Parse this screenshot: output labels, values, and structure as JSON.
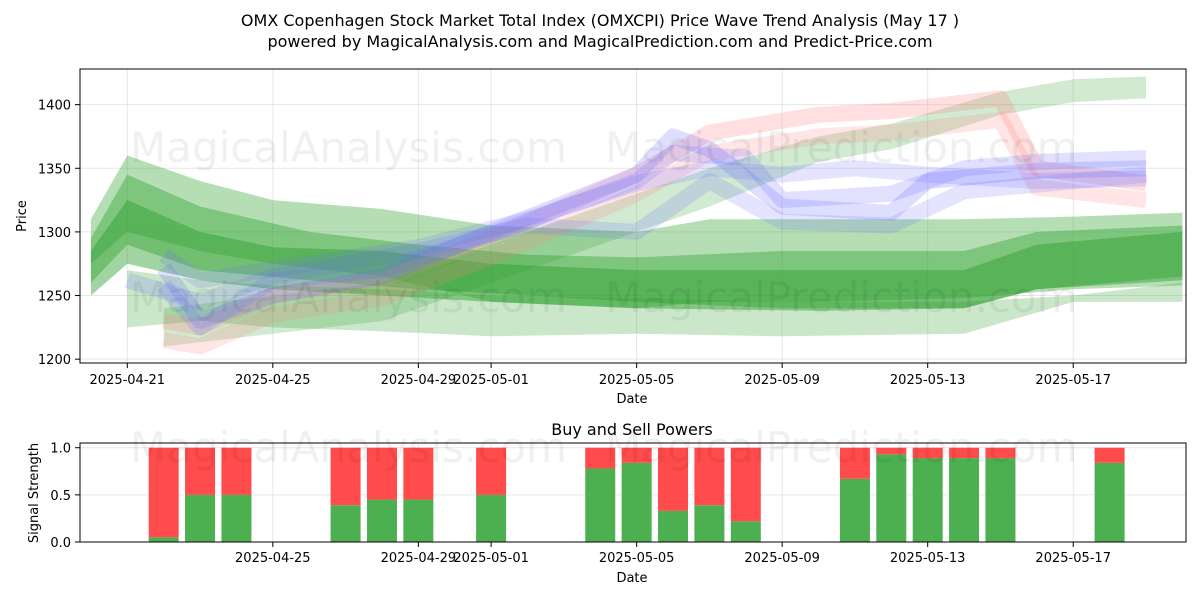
{
  "title": {
    "line1": "OMX Copenhagen Stock Market Total Index (OMXCPI) Price Wave Trend Analysis (May 17 )",
    "line2": "powered by MagicalAnalysis.com and MagicalPrediction.com and Predict-Price.com"
  },
  "watermark": {
    "left": "MagicalAnalysis.com",
    "right": "MagicalPrediction.com"
  },
  "colors": {
    "green": "#2ca02c",
    "red": "#ff7f7f",
    "blue": "#6a6aff",
    "buy": "#4caf50",
    "sell": "#ff4b4b"
  },
  "chart_data": [
    {
      "type": "area",
      "title": "",
      "xlabel": "Date",
      "ylabel": "Price",
      "x_range": [
        "2025-04-20",
        "2025-05-20"
      ],
      "ylim": [
        1197,
        1428
      ],
      "x_ticks": [
        "2025-04-21",
        "2025-04-25",
        "2025-04-29",
        "2025-05-01",
        "2025-05-05",
        "2025-05-09",
        "2025-05-13",
        "2025-05-17"
      ],
      "y_ticks": [
        1200,
        1250,
        1300,
        1350,
        1400
      ],
      "grid": true,
      "bands": [
        {
          "color": "green",
          "opacity": 0.35,
          "x": [
            "2025-04-20",
            "2025-04-21",
            "2025-04-23",
            "2025-04-25",
            "2025-04-28",
            "2025-05-01",
            "2025-05-05",
            "2025-05-07",
            "2025-05-10",
            "2025-05-14",
            "2025-05-17",
            "2025-05-20"
          ],
          "upper": [
            1310,
            1360,
            1340,
            1325,
            1318,
            1305,
            1300,
            1310,
            1310,
            1310,
            1312,
            1315
          ],
          "lower": [
            1275,
            1300,
            1285,
            1275,
            1265,
            1245,
            1240,
            1245,
            1245,
            1248,
            1255,
            1258
          ]
        },
        {
          "color": "green",
          "opacity": 0.4,
          "x": [
            "2025-04-20",
            "2025-04-21",
            "2025-04-23",
            "2025-04-26",
            "2025-04-29",
            "2025-05-02",
            "2025-05-05",
            "2025-05-09",
            "2025-05-14",
            "2025-05-16",
            "2025-05-20"
          ],
          "upper": [
            1295,
            1345,
            1320,
            1300,
            1290,
            1282,
            1280,
            1285,
            1285,
            1300,
            1305
          ],
          "lower": [
            1260,
            1290,
            1270,
            1262,
            1255,
            1250,
            1245,
            1240,
            1240,
            1255,
            1265
          ]
        },
        {
          "color": "green",
          "opacity": 0.45,
          "x": [
            "2025-04-20",
            "2025-04-21",
            "2025-04-23",
            "2025-04-25",
            "2025-04-28",
            "2025-05-01",
            "2025-05-05",
            "2025-05-10",
            "2025-05-14",
            "2025-05-16",
            "2025-05-20"
          ],
          "upper": [
            1285,
            1325,
            1300,
            1288,
            1285,
            1275,
            1270,
            1270,
            1270,
            1290,
            1300
          ],
          "lower": [
            1250,
            1275,
            1262,
            1255,
            1250,
            1245,
            1240,
            1238,
            1240,
            1255,
            1262
          ]
        },
        {
          "color": "green",
          "opacity": 0.25,
          "x": [
            "2025-04-21",
            "2025-04-23",
            "2025-04-25",
            "2025-04-28",
            "2025-05-01",
            "2025-05-05",
            "2025-05-09",
            "2025-05-14",
            "2025-05-17",
            "2025-05-20"
          ],
          "upper": [
            1270,
            1262,
            1258,
            1255,
            1250,
            1248,
            1245,
            1245,
            1250,
            1260
          ],
          "lower": [
            1225,
            1230,
            1225,
            1222,
            1218,
            1220,
            1218,
            1220,
            1245,
            1245
          ]
        },
        {
          "color": "green",
          "opacity": 0.22,
          "x": [
            "2025-04-22",
            "2025-04-25",
            "2025-04-28",
            "2025-05-01",
            "2025-05-03",
            "2025-05-05",
            "2025-05-07",
            "2025-05-10",
            "2025-05-12",
            "2025-05-15",
            "2025-05-17",
            "2025-05-19"
          ],
          "upper": [
            1240,
            1250,
            1260,
            1290,
            1310,
            1330,
            1350,
            1375,
            1385,
            1410,
            1420,
            1422
          ],
          "lower": [
            1210,
            1220,
            1230,
            1260,
            1280,
            1300,
            1320,
            1355,
            1365,
            1392,
            1402,
            1405
          ]
        },
        {
          "color": "red",
          "opacity": 0.25,
          "x": [
            "2025-04-22",
            "2025-04-23",
            "2025-04-25",
            "2025-04-28",
            "2025-05-01",
            "2025-05-05",
            "2025-05-07",
            "2025-05-10",
            "2025-05-12",
            "2025-05-15",
            "2025-05-16",
            "2025-05-19"
          ],
          "upper": [
            1230,
            1225,
            1250,
            1262,
            1295,
            1345,
            1378,
            1392,
            1395,
            1405,
            1350,
            1338
          ]
        },
        {
          "color": "red",
          "opacity": 0.2,
          "x": [
            "2025-04-22",
            "2025-04-23",
            "2025-04-25",
            "2025-04-28",
            "2025-05-01",
            "2025-05-05",
            "2025-05-07",
            "2025-05-10",
            "2025-05-12",
            "2025-05-15",
            "2025-05-16",
            "2025-05-19"
          ],
          "upper": [
            1215,
            1210,
            1235,
            1248,
            1280,
            1330,
            1362,
            1375,
            1378,
            1388,
            1335,
            1325
          ]
        },
        {
          "color": "blue",
          "opacity": 0.22,
          "x": [
            "2025-04-22",
            "2025-04-23",
            "2025-04-25",
            "2025-04-28",
            "2025-05-01",
            "2025-05-05",
            "2025-05-06",
            "2025-05-07",
            "2025-05-09",
            "2025-05-12",
            "2025-05-13",
            "2025-05-16",
            "2025-05-19"
          ],
          "upper": [
            1272,
            1230,
            1250,
            1265,
            1300,
            1345,
            1375,
            1365,
            1320,
            1315,
            1340,
            1348,
            1350
          ]
        },
        {
          "color": "blue",
          "opacity": 0.2,
          "x": [
            "2025-04-22",
            "2025-04-23",
            "2025-04-25",
            "2025-04-28",
            "2025-05-01",
            "2025-05-05",
            "2025-05-06",
            "2025-05-08",
            "2025-05-09",
            "2025-05-12",
            "2025-05-14",
            "2025-05-16",
            "2025-05-19"
          ],
          "upper": [
            1258,
            1225,
            1262,
            1270,
            1298,
            1340,
            1362,
            1358,
            1325,
            1330,
            1350,
            1355,
            1358
          ]
        },
        {
          "color": "blue",
          "opacity": 0.18,
          "x": [
            "2025-04-22",
            "2025-04-23",
            "2025-04-26",
            "2025-04-29",
            "2025-05-02",
            "2025-05-05",
            "2025-05-07",
            "2025-05-09",
            "2025-05-11",
            "2025-05-13",
            "2025-05-16",
            "2025-05-19"
          ],
          "upper": [
            1282,
            1262,
            1275,
            1288,
            1310,
            1338,
            1350,
            1345,
            1350,
            1345,
            1340,
            1342
          ]
        },
        {
          "color": "blue",
          "opacity": 0.18,
          "x": [
            "2025-04-21",
            "2025-04-23",
            "2025-04-25",
            "2025-04-29",
            "2025-05-02",
            "2025-05-05",
            "2025-05-07",
            "2025-05-09",
            "2025-05-12",
            "2025-05-14",
            "2025-05-19"
          ],
          "upper": [
            1262,
            1245,
            1265,
            1285,
            1305,
            1300,
            1340,
            1308,
            1305,
            1332,
            1345
          ]
        }
      ]
    },
    {
      "type": "bar",
      "title": "Buy and Sell Powers",
      "xlabel": "Date",
      "ylabel": "Signal Strength",
      "ylim": [
        0,
        1.05
      ],
      "y_ticks": [
        0.0,
        0.5,
        1.0
      ],
      "x_ticks": [
        "2025-04-25",
        "2025-04-29",
        "2025-05-01",
        "2025-05-05",
        "2025-05-09",
        "2025-05-13",
        "2025-05-17"
      ],
      "grid": true,
      "series": [
        {
          "name": "Buy",
          "color": "buy"
        },
        {
          "name": "Sell",
          "color": "sell"
        }
      ],
      "categories": [
        "2025-04-22",
        "2025-04-23",
        "2025-04-24",
        "2025-04-27",
        "2025-04-28",
        "2025-04-29",
        "2025-05-01",
        "2025-05-04",
        "2025-05-05",
        "2025-05-06",
        "2025-05-07",
        "2025-05-08",
        "2025-05-11",
        "2025-05-12",
        "2025-05-13",
        "2025-05-14",
        "2025-05-15",
        "2025-05-18"
      ],
      "buy": [
        0.05,
        0.5,
        0.5,
        0.39,
        0.45,
        0.45,
        0.5,
        0.78,
        0.84,
        0.33,
        0.39,
        0.22,
        0.67,
        0.93,
        0.89,
        0.89,
        0.89,
        0.84
      ],
      "sell": [
        0.95,
        0.5,
        0.5,
        0.61,
        0.55,
        0.55,
        0.5,
        0.22,
        0.16,
        0.67,
        0.61,
        0.78,
        0.33,
        0.07,
        0.11,
        0.11,
        0.11,
        0.16
      ]
    }
  ]
}
